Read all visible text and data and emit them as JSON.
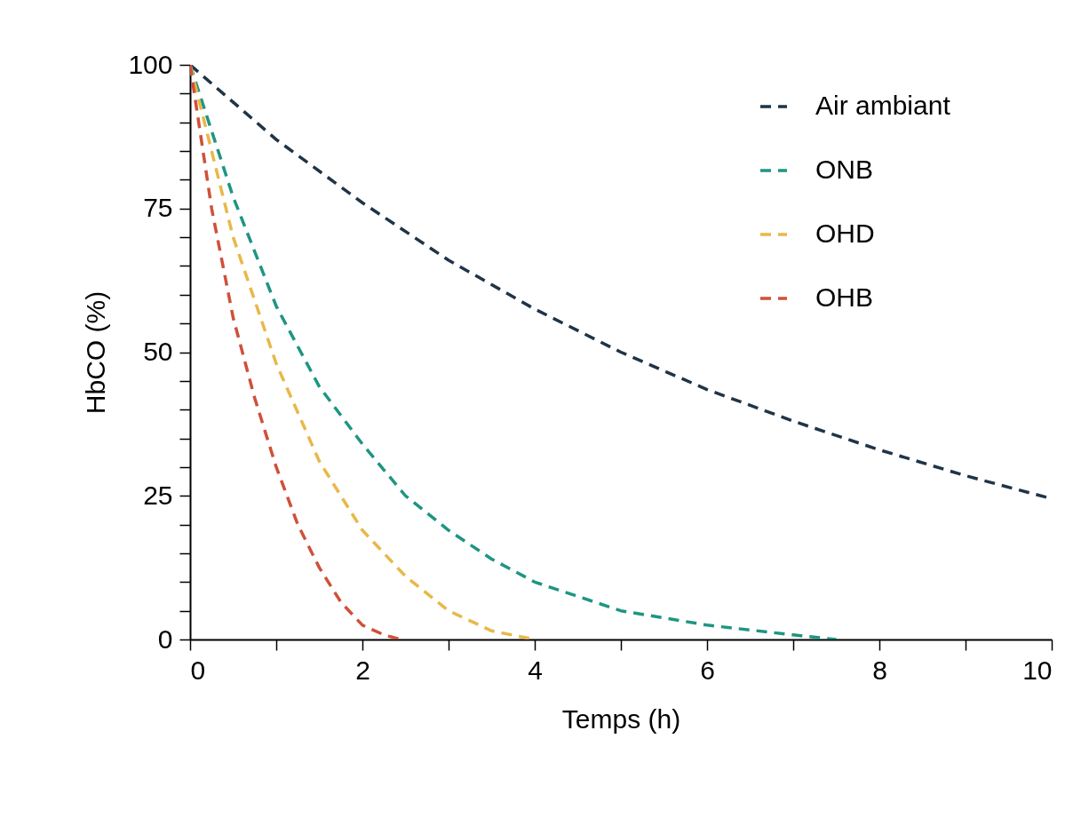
{
  "chart_data": {
    "type": "line",
    "xlabel": "Temps (h)",
    "ylabel": "HbCO (%)",
    "xlim": [
      0,
      10
    ],
    "ylim": [
      0,
      100
    ],
    "xticks": [
      0,
      {
        "value": 1,
        "label": null
      },
      2,
      {
        "value": 3,
        "label": null
      },
      4,
      {
        "value": 5,
        "label": null
      },
      6,
      {
        "value": 7,
        "label": null
      },
      8,
      {
        "value": 9,
        "label": null
      },
      10
    ],
    "yticks": [
      0,
      {
        "value": 5,
        "label": null
      },
      {
        "value": 10,
        "label": null
      },
      {
        "value": 15,
        "label": null
      },
      {
        "value": 20,
        "label": null
      },
      25,
      {
        "value": 30,
        "label": null
      },
      {
        "value": 35,
        "label": null
      },
      {
        "value": 40,
        "label": null
      },
      {
        "value": 45,
        "label": null
      },
      50,
      {
        "value": 55,
        "label": null
      },
      {
        "value": 60,
        "label": null
      },
      {
        "value": 65,
        "label": null
      },
      {
        "value": 70,
        "label": null
      },
      75,
      {
        "value": 80,
        "label": null
      },
      {
        "value": 85,
        "label": null
      },
      {
        "value": 90,
        "label": null
      },
      {
        "value": 95,
        "label": null
      },
      100
    ],
    "grid": false,
    "legend": "top right",
    "line_style": "dashed",
    "marker": "none",
    "series": [
      {
        "name": "Air ambiant",
        "color": "#1f3447",
        "x": [
          0,
          1,
          2,
          3,
          4,
          5,
          6,
          7,
          8,
          9,
          10
        ],
        "values": [
          100,
          87,
          76,
          66,
          57.5,
          50,
          43.5,
          38,
          33,
          28.5,
          24.5
        ]
      },
      {
        "name": "ONB",
        "color": "#1e9582",
        "x": [
          0,
          0.5,
          1,
          1.5,
          2,
          2.5,
          3,
          3.5,
          4,
          5,
          6,
          7,
          7.5
        ],
        "values": [
          100,
          77,
          58,
          44,
          34,
          25,
          19,
          14,
          10,
          5,
          2.5,
          0.8,
          0
        ]
      },
      {
        "name": "OHD",
        "color": "#e8b84a",
        "x": [
          0,
          0.25,
          0.5,
          0.75,
          1,
          1.5,
          2,
          2.5,
          3,
          3.5,
          4
        ],
        "values": [
          100,
          85,
          70,
          59,
          48,
          31,
          19,
          11,
          5,
          1.5,
          0
        ]
      },
      {
        "name": "OHB",
        "color": "#d0503a",
        "x": [
          0,
          0.25,
          0.5,
          0.75,
          1,
          1.25,
          1.5,
          1.75,
          2,
          2.25,
          2.45
        ],
        "values": [
          100,
          75,
          56,
          42,
          30,
          20,
          12.5,
          6.5,
          2.5,
          0.8,
          0
        ]
      }
    ]
  }
}
